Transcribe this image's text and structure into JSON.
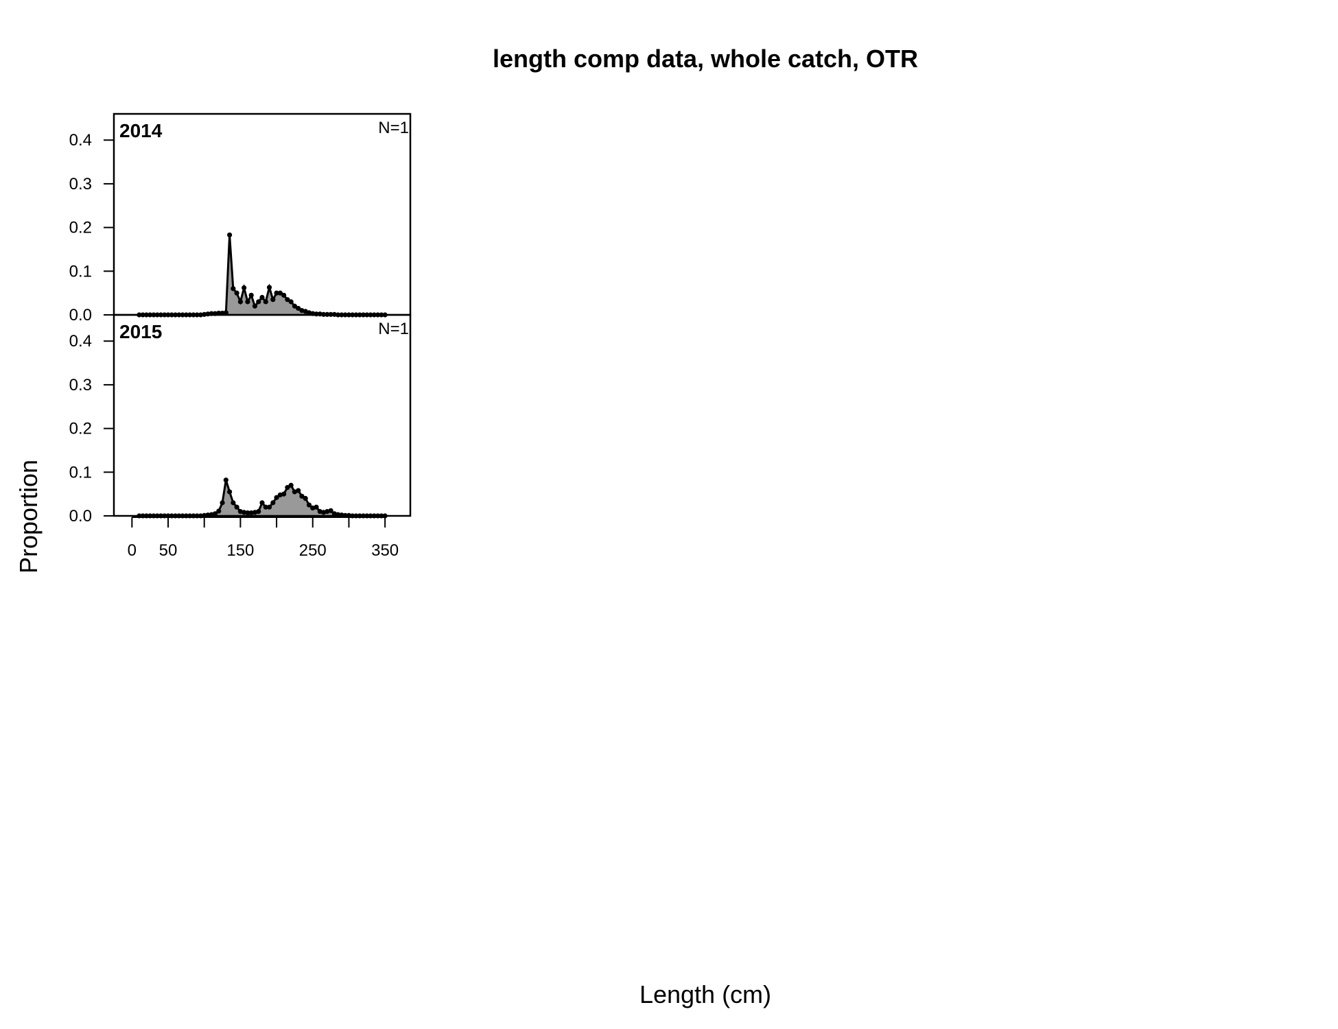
{
  "chart_data": {
    "type": "area",
    "title": "length comp data, whole catch, OTR",
    "xlabel": "Length (cm)",
    "ylabel": "Proportion",
    "xlim": [
      -25,
      385
    ],
    "ylim": [
      0,
      0.46
    ],
    "x_ticks": [
      0,
      50,
      100,
      150,
      200,
      250,
      300,
      350
    ],
    "x_tick_labels": [
      "0",
      "50",
      "",
      "150",
      "",
      "250",
      "",
      "350"
    ],
    "y_ticks": [
      0.0,
      0.1,
      0.2,
      0.3,
      0.4
    ],
    "y_tick_labels": [
      "0.0",
      "0.1",
      "0.2",
      "0.3",
      "0.4"
    ],
    "fill_color": "#999999",
    "line_color": "#000000",
    "panels": [
      {
        "label": "2014",
        "n_label": "N=1",
        "x": [
          10,
          15,
          20,
          25,
          30,
          35,
          40,
          45,
          50,
          55,
          60,
          65,
          70,
          75,
          80,
          85,
          90,
          95,
          100,
          105,
          110,
          115,
          120,
          125,
          130,
          135,
          140,
          145,
          150,
          155,
          160,
          165,
          170,
          175,
          180,
          185,
          190,
          195,
          200,
          205,
          210,
          215,
          220,
          225,
          230,
          235,
          240,
          245,
          250,
          255,
          260,
          265,
          270,
          275,
          280,
          285,
          290,
          295,
          300,
          305,
          310,
          315,
          320,
          325,
          330,
          335,
          340,
          345,
          350
        ],
        "y": [
          0,
          0,
          0,
          0,
          0,
          0,
          0,
          0,
          0,
          0,
          0,
          0,
          0,
          0,
          0,
          0,
          0,
          0,
          0.001,
          0.002,
          0.003,
          0.003,
          0.004,
          0.004,
          0.005,
          0.183,
          0.06,
          0.05,
          0.03,
          0.062,
          0.03,
          0.045,
          0.02,
          0.03,
          0.04,
          0.03,
          0.063,
          0.035,
          0.05,
          0.05,
          0.045,
          0.035,
          0.03,
          0.02,
          0.015,
          0.01,
          0.008,
          0.005,
          0.003,
          0.002,
          0.002,
          0.001,
          0.001,
          0.001,
          0.001,
          0,
          0,
          0,
          0,
          0,
          0,
          0,
          0,
          0,
          0,
          0,
          0,
          0,
          0
        ]
      },
      {
        "label": "2015",
        "n_label": "N=1",
        "x": [
          10,
          15,
          20,
          25,
          30,
          35,
          40,
          45,
          50,
          55,
          60,
          65,
          70,
          75,
          80,
          85,
          90,
          95,
          100,
          105,
          110,
          115,
          120,
          125,
          130,
          135,
          140,
          145,
          150,
          155,
          160,
          165,
          170,
          175,
          180,
          185,
          190,
          195,
          200,
          205,
          210,
          215,
          220,
          225,
          230,
          235,
          240,
          245,
          250,
          255,
          260,
          265,
          270,
          275,
          280,
          285,
          290,
          295,
          300,
          305,
          310,
          315,
          320,
          325,
          330,
          335,
          340,
          345,
          350
        ],
        "y": [
          0,
          0,
          0,
          0,
          0,
          0,
          0,
          0,
          0,
          0,
          0,
          0,
          0,
          0,
          0,
          0,
          0,
          0,
          0.001,
          0.002,
          0.003,
          0.005,
          0.011,
          0.03,
          0.082,
          0.055,
          0.03,
          0.02,
          0.01,
          0.008,
          0.007,
          0.007,
          0.008,
          0.01,
          0.03,
          0.02,
          0.02,
          0.03,
          0.042,
          0.048,
          0.05,
          0.065,
          0.07,
          0.055,
          0.058,
          0.045,
          0.04,
          0.025,
          0.018,
          0.02,
          0.01,
          0.008,
          0.01,
          0.012,
          0.005,
          0.003,
          0.002,
          0.001,
          0.001,
          0,
          0,
          0,
          0,
          0,
          0,
          0,
          0,
          0,
          0
        ]
      }
    ]
  }
}
